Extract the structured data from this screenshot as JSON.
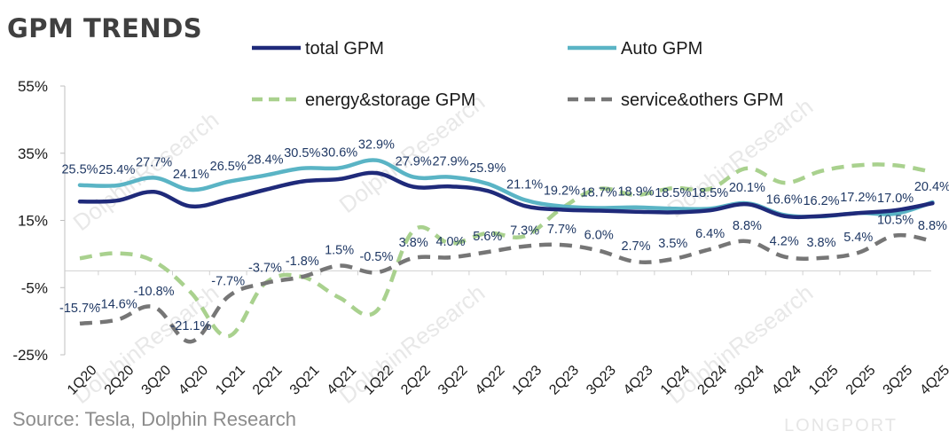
{
  "source": "Source: Tesla,  Dolphin Research",
  "watermark": "DolphinResearch",
  "brand_watermark": "LONGPORT",
  "chart_data": {
    "type": "line",
    "title": "GPM TRENDS",
    "xlabel": "",
    "ylabel": "",
    "ylim": [
      -25,
      55
    ],
    "yticks": [
      "55%",
      "35%",
      "15%",
      "-5%",
      "-25%"
    ],
    "ytick_values": [
      55,
      35,
      15,
      -5,
      -25
    ],
    "grid": false,
    "legend_position": "top",
    "categories": [
      "1Q20",
      "2Q20",
      "3Q20",
      "4Q20",
      "1Q21",
      "2Q21",
      "3Q21",
      "4Q21",
      "1Q22",
      "2Q22",
      "3Q22",
      "4Q22",
      "1Q23",
      "2Q23",
      "3Q23",
      "4Q23",
      "1Q24",
      "2Q24",
      "3Q24",
      "4Q24",
      "1Q25",
      "2Q25",
      "3Q25",
      "4Q25"
    ],
    "series": [
      {
        "name": "total GPM",
        "color": "#1f2a7a",
        "dash": "solid",
        "values": [
          20.6,
          20.9,
          23.5,
          19.2,
          21.3,
          24.1,
          26.6,
          27.3,
          29.1,
          25.0,
          25.1,
          23.8,
          19.3,
          18.2,
          17.9,
          17.6,
          17.4,
          18.0,
          19.8,
          16.3,
          16.3,
          17.2,
          18.0,
          20.1
        ],
        "labels": null
      },
      {
        "name": "Auto GPM",
        "color": "#5ab4c5",
        "dash": "solid",
        "values": [
          25.5,
          25.4,
          27.7,
          24.1,
          26.5,
          28.4,
          30.5,
          30.6,
          32.9,
          27.9,
          27.9,
          25.9,
          21.1,
          19.2,
          18.7,
          18.9,
          18.5,
          18.5,
          20.1,
          16.6,
          16.2,
          17.2,
          17.0,
          20.4
        ],
        "labels": [
          "25.5%",
          "25.4%",
          "27.7%",
          "24.1%",
          "26.5%",
          "28.4%",
          "30.5%",
          "30.6%",
          "32.9%",
          "27.9%",
          "27.9%",
          "25.9%",
          "21.1%",
          "19.2%",
          "18.7%",
          "18.9%",
          "18.5%",
          "18.5%",
          "20.1%",
          "16.6%",
          "16.2%",
          "17.2%",
          "17.0%",
          "20.4%"
        ]
      },
      {
        "name": "energy&storage GPM",
        "color": "#a9d18e",
        "dash": "dashed",
        "values": [
          3.7,
          5.2,
          2.8,
          -6.5,
          -19.5,
          -3.7,
          -1.8,
          -8.0,
          -12.0,
          12.0,
          8.2,
          11.2,
          10.3,
          18.6,
          24.4,
          22.6,
          24.6,
          24.4,
          30.5,
          26.2,
          29.7,
          31.4,
          31.4,
          29.4
        ],
        "labels": null
      },
      {
        "name": "service&others GPM",
        "color": "#767676",
        "dash": "dashed",
        "values": [
          -15.7,
          -14.6,
          -10.8,
          -21.1,
          -7.7,
          -3.7,
          -1.8,
          1.5,
          -0.5,
          3.8,
          4.0,
          5.6,
          7.3,
          7.7,
          6.0,
          2.7,
          3.5,
          6.4,
          8.8,
          4.2,
          3.8,
          5.4,
          10.5,
          8.8
        ],
        "labels": [
          "-15.7%",
          "-14.6%",
          "-10.8%",
          "-21.1%",
          "-7.7%",
          "-3.7%",
          "-1.8%",
          "1.5%",
          "-0.5%",
          "3.8%",
          "4.0%",
          "5.6%",
          "7.3%",
          "7.7%",
          "6.0%",
          "2.7%",
          "3.5%",
          "6.4%",
          "8.8%",
          "4.2%",
          "3.8%",
          "5.4%",
          "10.5%",
          "8.8%"
        ]
      }
    ]
  }
}
